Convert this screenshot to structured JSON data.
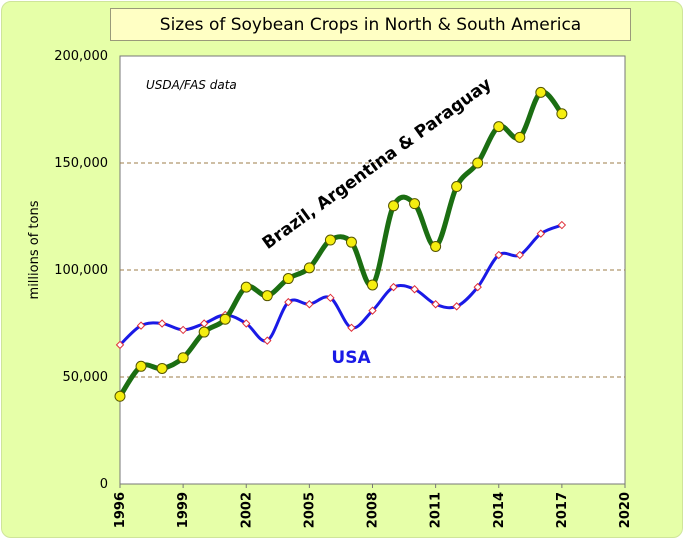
{
  "chart_data": {
    "type": "line",
    "title": "Sizes of Soybean Crops in North & South America",
    "source_note": "USDA/FAS data",
    "ylabel": "millions of tons",
    "xlabel": "",
    "xlim": [
      1996,
      2020
    ],
    "ylim": [
      0,
      200000
    ],
    "x_ticks": [
      "1996",
      "1999",
      "2002",
      "2005",
      "2008",
      "2011",
      "2014",
      "2017",
      "2020"
    ],
    "y_ticks": [
      "0",
      "50,000",
      "100,000",
      "150,000",
      "200,000"
    ],
    "grid": "horizontal dashed",
    "x": [
      1996,
      1997,
      1998,
      1999,
      2000,
      2001,
      2002,
      2003,
      2004,
      2005,
      2006,
      2007,
      2008,
      2009,
      2010,
      2011,
      2012,
      2013,
      2014,
      2015,
      2016,
      2017
    ],
    "series": [
      {
        "name": "Brazil, Argentina & Paraguay",
        "color": "#1b6e12",
        "marker": "yellow circle",
        "values": [
          41000,
          55000,
          54000,
          59000,
          71000,
          77000,
          92000,
          88000,
          96000,
          101000,
          114000,
          113000,
          93000,
          130000,
          131000,
          111000,
          139000,
          150000,
          167000,
          162000,
          183000,
          173000
        ]
      },
      {
        "name": "USA",
        "color": "#1a1ae6",
        "marker": "white diamond",
        "values": [
          65000,
          74000,
          75000,
          72000,
          75000,
          79000,
          75000,
          67000,
          85000,
          84000,
          87000,
          73000,
          81000,
          92000,
          91000,
          84000,
          83000,
          92000,
          107000,
          107000,
          117000,
          121000
        ]
      }
    ]
  }
}
